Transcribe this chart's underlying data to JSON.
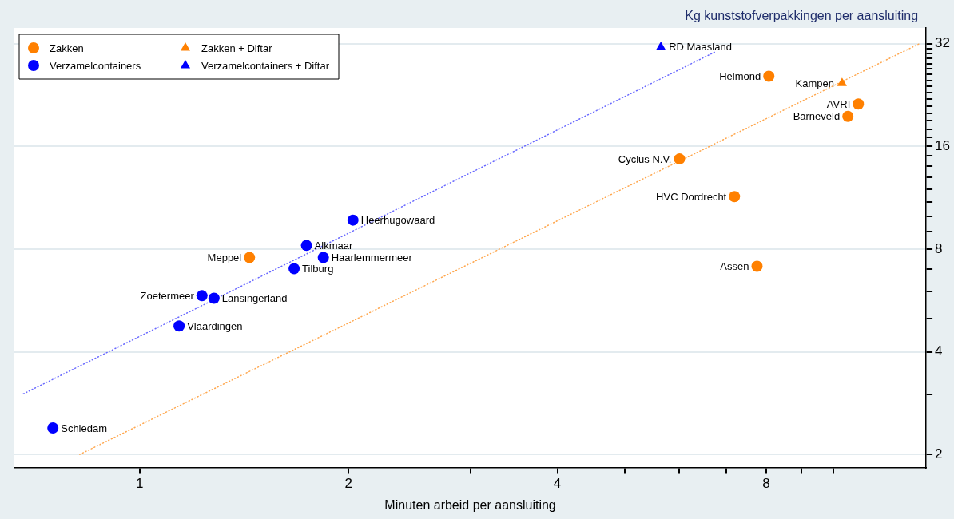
{
  "chart_data": {
    "type": "scatter",
    "xlabel": "Minuten arbeid per aansluiting",
    "ylabel": "Kg kunststofverpakkingen per aansluiting",
    "log": "xy",
    "grid": "y",
    "legend": "top left",
    "xlim": [
      0.66,
      13.6
    ],
    "ylim": [
      1.83,
      35.6
    ],
    "xticks": [
      1,
      2,
      {
        "value": 3,
        "label": null
      },
      4,
      {
        "value": 5,
        "label": null
      },
      {
        "value": 6,
        "label": null
      },
      {
        "value": 7,
        "label": null
      },
      8,
      {
        "value": 9,
        "label": null
      },
      {
        "value": 10,
        "label": null
      }
    ],
    "yticks": [
      2,
      {
        "value": 3,
        "label": null
      },
      4,
      {
        "value": 5,
        "label": null
      },
      {
        "value": 6,
        "label": null
      },
      {
        "value": 7,
        "label": null
      },
      8,
      {
        "value": 9,
        "label": null
      },
      {
        "value": 10,
        "label": null
      },
      {
        "value": 11,
        "label": null
      },
      {
        "value": 12,
        "label": null
      },
      {
        "value": 13,
        "label": null
      },
      {
        "value": 14,
        "label": null
      },
      {
        "value": 15,
        "label": null
      },
      16,
      {
        "value": 17,
        "label": null
      },
      {
        "value": 18,
        "label": null
      },
      {
        "value": 19,
        "label": null
      },
      {
        "value": 20,
        "label": null
      },
      {
        "value": 21,
        "label": null
      },
      {
        "value": 22,
        "label": null
      },
      {
        "value": 23,
        "label": null
      },
      {
        "value": 24,
        "label": null
      },
      {
        "value": 25,
        "label": null
      },
      {
        "value": 26,
        "label": null
      },
      {
        "value": 27,
        "label": null
      },
      {
        "value": 28,
        "label": null
      },
      {
        "value": 29,
        "label": null
      },
      {
        "value": 30,
        "label": null
      },
      {
        "value": 31,
        "label": null
      },
      32
    ],
    "series": [
      {
        "name": "Zakken",
        "color": "#ff8000",
        "marker": "circle",
        "x": [
          1.44,
          8.07,
          10.86,
          10.49,
          6.0,
          7.2,
          7.76
        ],
        "values": [
          7.56,
          25.7,
          21.3,
          19.6,
          14.7,
          11.4,
          7.12
        ],
        "value_labels": [
          "Meppel",
          "Helmond",
          "AVRI",
          "Barneveld",
          "Cyclus N.V.",
          "HVC Dordrecht",
          "Assen"
        ]
      },
      {
        "name": "Zakken + Diftar",
        "color": "#ff8000",
        "marker": "triangle",
        "x": [
          10.29
        ],
        "values": [
          24.5
        ],
        "value_labels": [
          "Kampen"
        ]
      },
      {
        "name": "Verzamelcontainers",
        "color": "#0000ff",
        "marker": "circle",
        "x": [
          0.75,
          1.14,
          1.23,
          1.28,
          1.67,
          1.74,
          1.84,
          2.03
        ],
        "values": [
          2.39,
          4.76,
          5.84,
          5.74,
          7.01,
          8.2,
          7.56,
          9.73
        ],
        "value_labels": [
          "Schiedam",
          "Vlaardingen",
          "Zoetermeer",
          "Lansingerland",
          "Tilburg",
          "Alkmaar",
          "Haarlemmermeer",
          "Heerhugowaard"
        ]
      },
      {
        "name": "Verzamelcontainers + Diftar",
        "color": "#0000ff",
        "marker": "triangle",
        "x": [
          5.64
        ],
        "values": [
          31.3
        ],
        "value_labels": [
          "RD Maasland"
        ]
      },
      {
        "type": "line",
        "color": "#6a6aff",
        "marker": "none",
        "line_style": "dotted",
        "x": [
          0.68,
          6.78
        ],
        "values": [
          3.01,
          30.4
        ]
      },
      {
        "type": "line",
        "color": "#ffa850",
        "marker": "none",
        "line_style": "dotted",
        "x": [
          0.82,
          13.3
        ],
        "values": [
          2,
          32
        ]
      }
    ]
  }
}
